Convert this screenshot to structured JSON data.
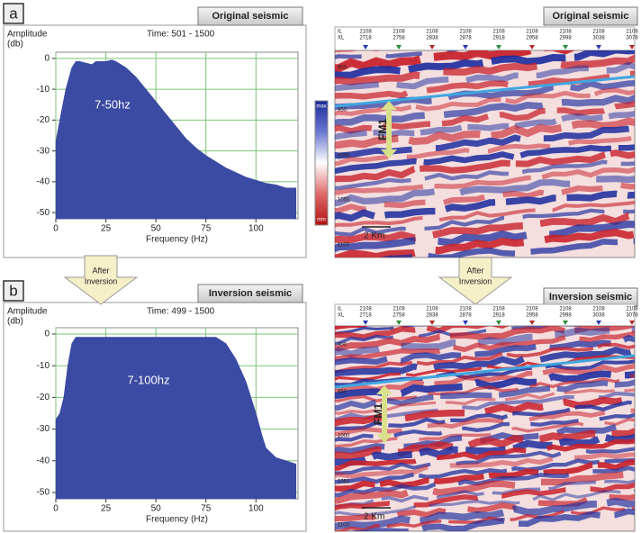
{
  "chart_data": [
    {
      "type": "area",
      "panel_label": "a",
      "title": "Original seismic",
      "subtitle": "Time: 501 - 1500",
      "ylabel": "Amplitude",
      "ylabel_unit": "(db)",
      "xlabel": "Frequency (Hz)",
      "annotation": "7-50hz",
      "color": "#3b4aa2",
      "grid": true,
      "grid_color": "#7cc576",
      "x": [
        0,
        2,
        5,
        8,
        10,
        12,
        15,
        18,
        20,
        25,
        28,
        30,
        35,
        40,
        45,
        50,
        55,
        60,
        65,
        70,
        75,
        80,
        85,
        90,
        95,
        100,
        105,
        110,
        115,
        120
      ],
      "values": [
        -27,
        -20,
        -10,
        -3,
        -1,
        -1,
        -1.5,
        -2,
        -1,
        -1,
        -0.5,
        -1,
        -3,
        -6,
        -10,
        -14,
        -18,
        -22,
        -26,
        -29,
        -31.5,
        -33.5,
        -35.5,
        -37,
        -38.5,
        -39.5,
        -40.5,
        -41,
        -42,
        -42
      ],
      "xlim": [
        0,
        121
      ],
      "ylim": [
        -52,
        2
      ],
      "xticks": [
        0,
        25,
        50,
        75,
        100
      ],
      "yticks": [
        0,
        -10,
        -20,
        -30,
        -40,
        -50
      ]
    },
    {
      "type": "area",
      "panel_label": "b",
      "title": "Inversion seismic",
      "subtitle": "Time: 499 - 1500",
      "ylabel": "Amplitude",
      "ylabel_unit": "(db)",
      "xlabel": "Frequency (Hz)",
      "annotation": "7-100hz",
      "color": "#3b4aa2",
      "grid": true,
      "grid_color": "#7cc576",
      "x": [
        0,
        2,
        4,
        6,
        8,
        10,
        15,
        20,
        30,
        40,
        50,
        60,
        70,
        75,
        80,
        85,
        90,
        95,
        100,
        103,
        105,
        110,
        115,
        120
      ],
      "values": [
        -27,
        -25,
        -20,
        -10,
        -3,
        -1,
        -1,
        -1,
        -1,
        -1,
        -1,
        -1,
        -1,
        -1,
        -1,
        -3,
        -8,
        -15,
        -25,
        -32,
        -36,
        -39,
        -40,
        -41
      ],
      "xlim": [
        0,
        121
      ],
      "ylim": [
        -52,
        2
      ],
      "xticks": [
        0,
        25,
        50,
        75,
        100
      ],
      "yticks": [
        0,
        -10,
        -20,
        -30,
        -40,
        -50
      ]
    }
  ],
  "arrows": [
    {
      "lines": [
        "After",
        "Inversion"
      ]
    },
    {
      "lines": [
        "After",
        "Inversion"
      ]
    }
  ],
  "colorbar": {
    "max": "max",
    "min": "min"
  },
  "seismic": [
    {
      "title": "Original seismic",
      "il_label": "IL",
      "xl_label": "XL",
      "il": [
        2108,
        2108,
        2108,
        2108,
        2108,
        2108,
        2108,
        2108,
        2108
      ],
      "xl": [
        2718,
        2758,
        2838,
        2878,
        2918,
        2958,
        2998,
        3038,
        3078
      ],
      "depth_ticks": [
        900,
        950,
        1000,
        1050,
        1100
      ],
      "marker": "FM1",
      "scale": "2 Km"
    },
    {
      "title": "Inversion seismic",
      "il_label": "IL",
      "xl_label": "XL",
      "il": [
        2108,
        2108,
        2108,
        2108,
        2108,
        2108,
        2108,
        2108,
        2108
      ],
      "xl": [
        2718,
        2758,
        2838,
        2878,
        2918,
        2958,
        2998,
        3038,
        3078
      ],
      "depth_ticks": [
        900,
        950,
        1000,
        1050,
        1100
      ],
      "marker": "FM1",
      "scale": "2 Km"
    }
  ]
}
